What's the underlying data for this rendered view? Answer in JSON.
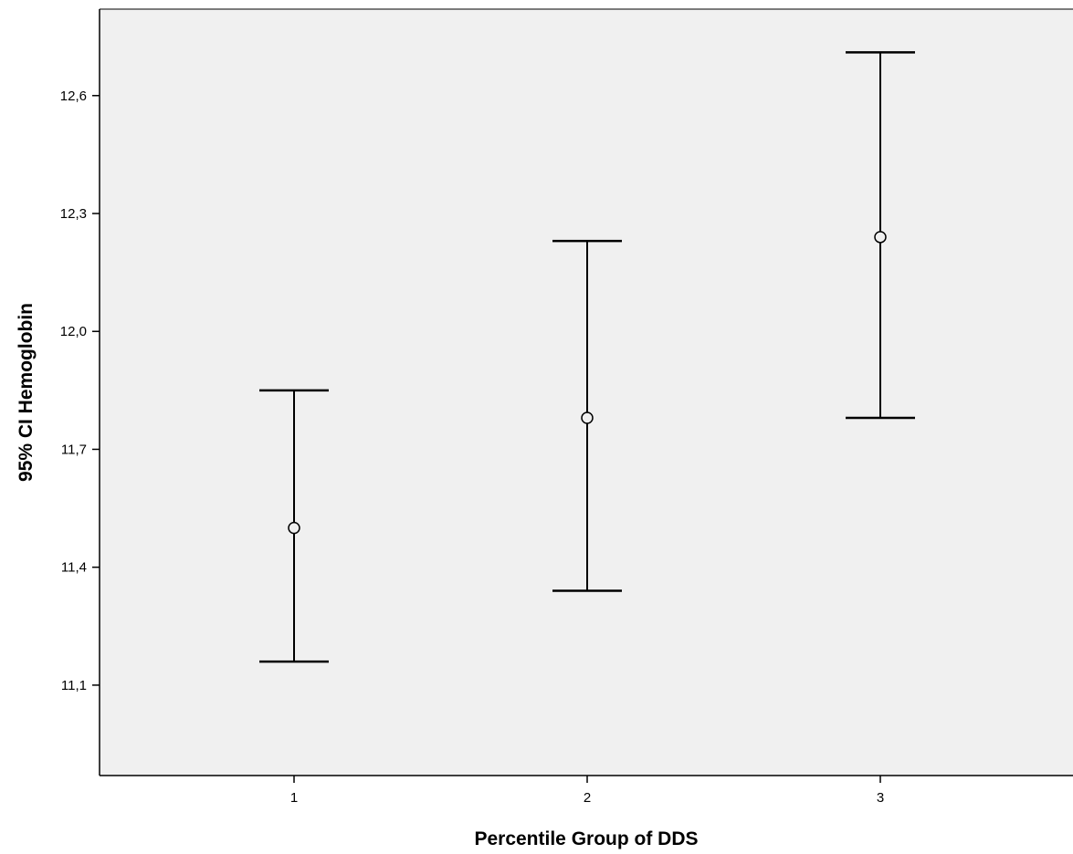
{
  "chart_data": {
    "type": "errorbar",
    "xlabel": "Percentile Group of DDS",
    "ylabel": "95% CI Hemoglobin",
    "categories": [
      "1",
      "2",
      "3"
    ],
    "series": [
      {
        "means": [
          11.5,
          11.78,
          12.24
        ],
        "lower": [
          11.16,
          11.34,
          11.78
        ],
        "upper": [
          11.85,
          12.23,
          12.71
        ]
      }
    ],
    "y_ticks": [
      "11,1",
      "11,4",
      "11,7",
      "12,0",
      "12,3",
      "12,6"
    ],
    "y_tick_values": [
      11.1,
      11.4,
      11.7,
      12.0,
      12.3,
      12.6
    ],
    "ylim": [
      10.87,
      12.82
    ],
    "grid": false,
    "colors": {
      "plot_background": "#f0f0f0",
      "marks": "#000000"
    }
  }
}
